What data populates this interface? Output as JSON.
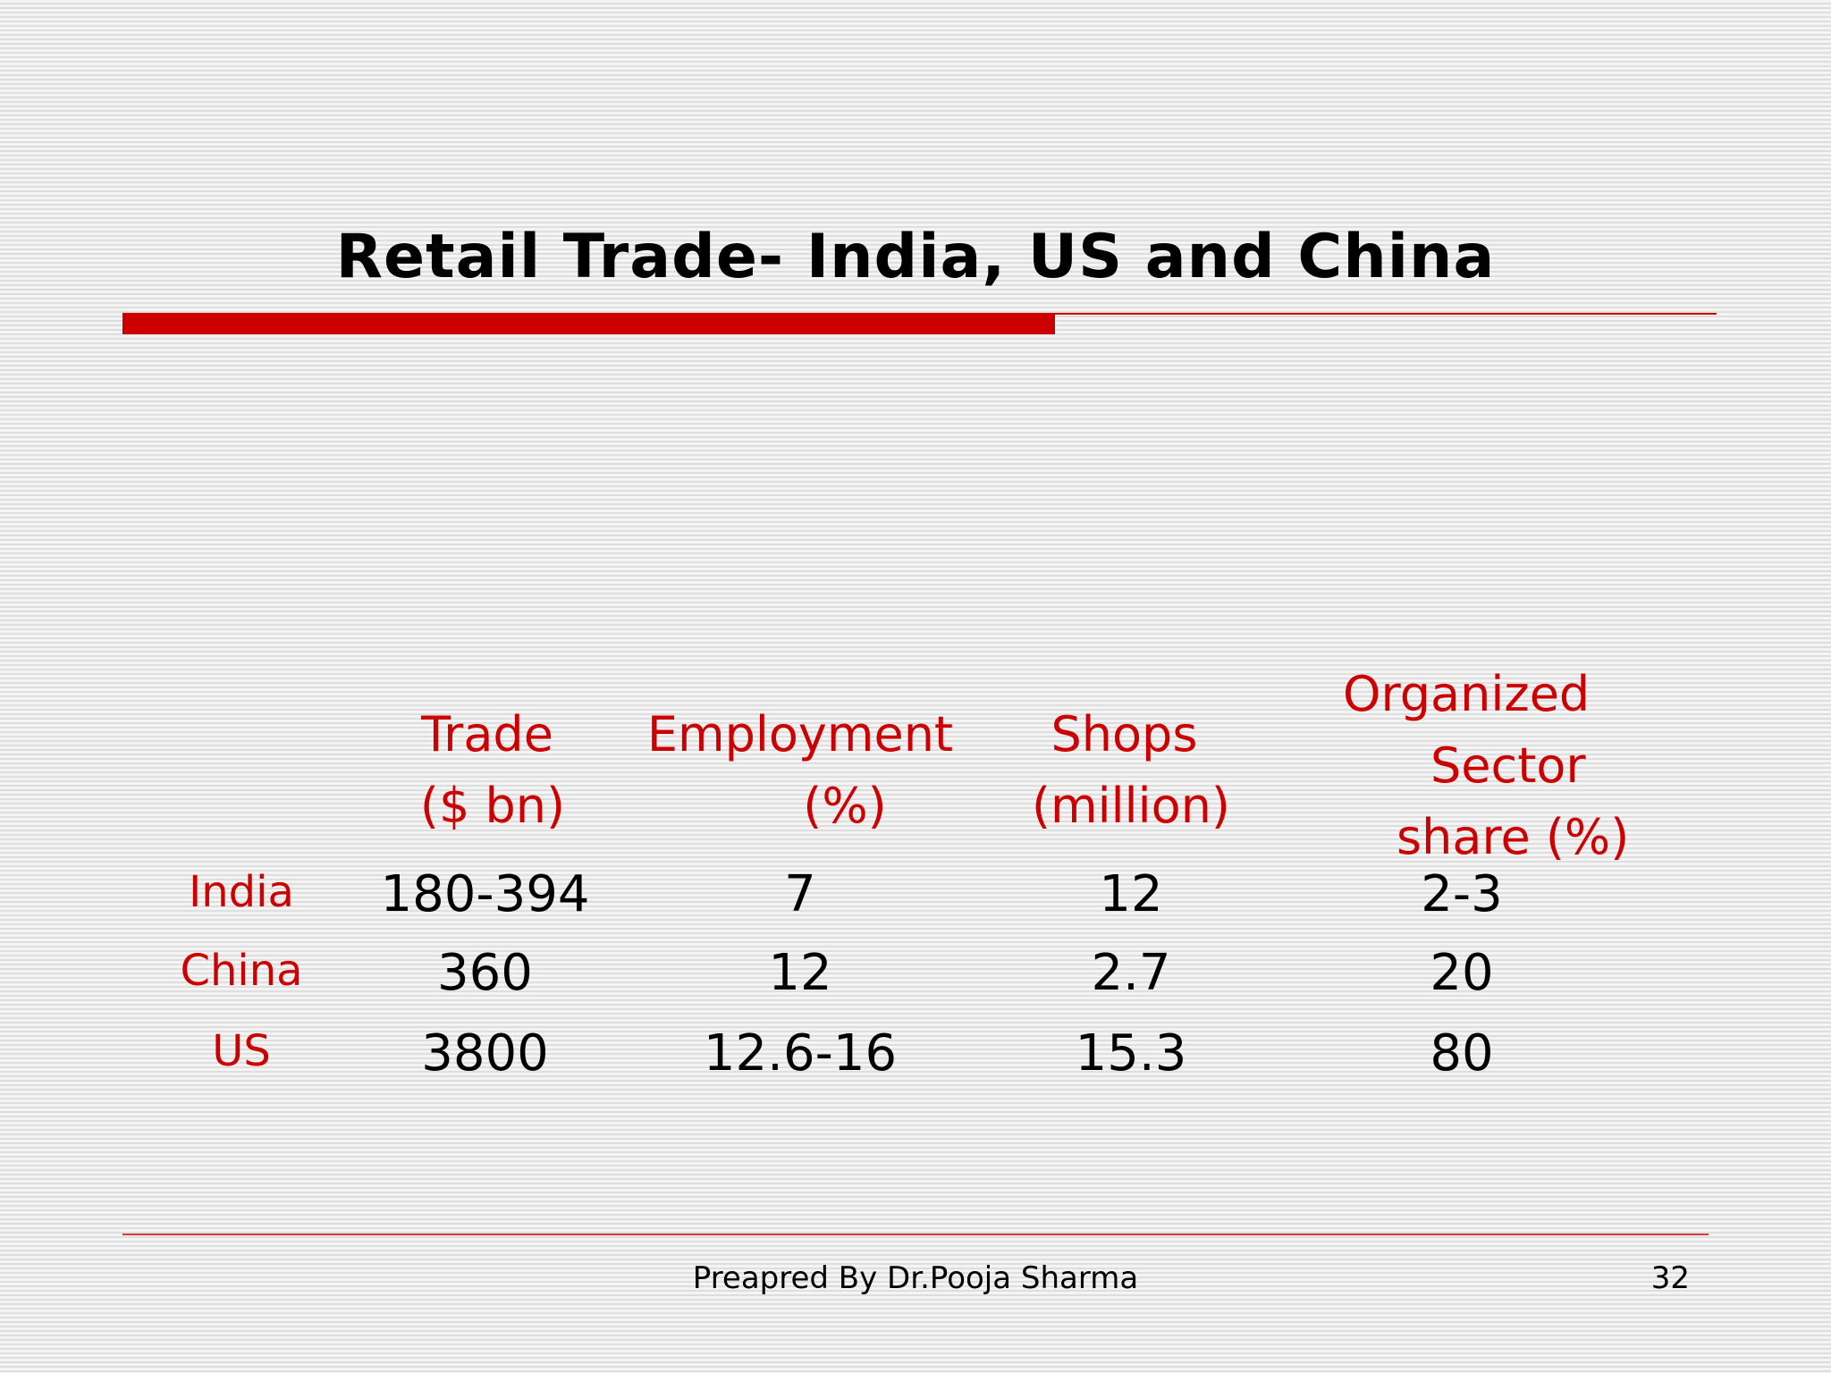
{
  "slide": {
    "title": "Retail Trade- India, US and China",
    "footer": "Preapred By Dr.Pooja Sharma",
    "page_number": "32"
  },
  "table": {
    "headers": [
      [
        "Trade",
        "($ bn)"
      ],
      [
        "Employment",
        "(%)"
      ],
      [
        "Shops",
        "(million)"
      ],
      [
        "Organized",
        "Sector",
        "share (%)"
      ]
    ],
    "rows": [
      {
        "label": "India",
        "values": [
          "180-394",
          "7",
          "12",
          "2-3"
        ]
      },
      {
        "label": "China",
        "values": [
          "360",
          "12",
          "2.7",
          "20"
        ]
      },
      {
        "label": "US",
        "values": [
          "3800",
          "12.6-16",
          "15.3",
          "80"
        ]
      }
    ]
  },
  "colors": {
    "accent": "#cc0000",
    "text": "#000000"
  }
}
